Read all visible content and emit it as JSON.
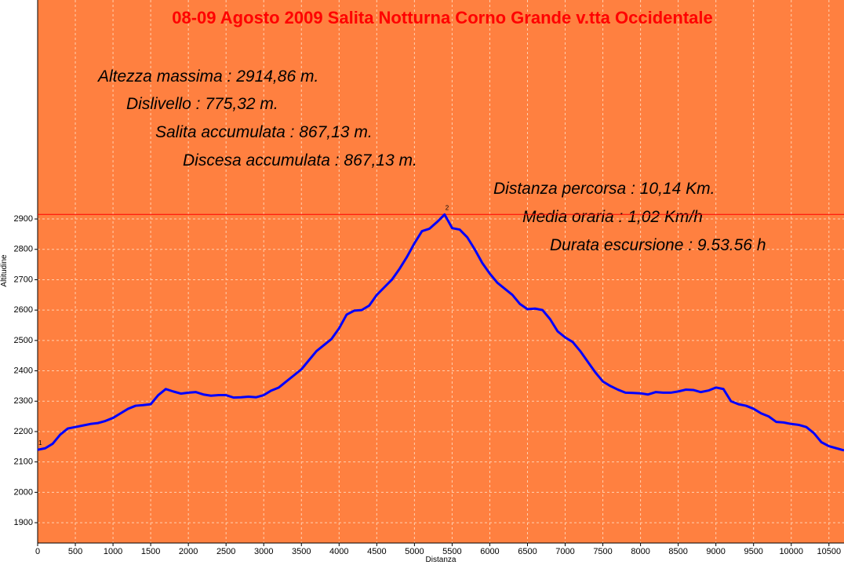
{
  "chart_data": {
    "type": "line",
    "title": "08-09 Agosto 2009 Salita Notturna Corno Grande v.tta Occidentale",
    "annotations": [
      "Altezza massima : 2914,86 m.",
      "Dislivello : 775,32 m.",
      "Salita accumulata : 867,13 m.",
      "Discesa accumulata : 867,13 m.",
      "Distanza percorsa : 10,14 Km.",
      "Media oraria : 1,02  Km/h",
      "Durata escursione : 9.53.56 h"
    ],
    "xlabel": "Distanza",
    "ylabel": "Altitudine",
    "x": [
      0,
      100,
      200,
      300,
      400,
      500,
      600,
      700,
      800,
      900,
      1000,
      1100,
      1200,
      1300,
      1400,
      1500,
      1600,
      1700,
      1800,
      1900,
      2000,
      2100,
      2200,
      2300,
      2400,
      2500,
      2600,
      2700,
      2800,
      2900,
      3000,
      3100,
      3200,
      3300,
      3400,
      3500,
      3600,
      3700,
      3800,
      3900,
      4000,
      4100,
      4200,
      4300,
      4400,
      4500,
      4600,
      4700,
      4800,
      4900,
      5000,
      5100,
      5200,
      5300,
      5400,
      5500,
      5600,
      5700,
      5800,
      5900,
      6000,
      6100,
      6200,
      6300,
      6400,
      6500,
      6600,
      6700,
      6800,
      6900,
      7000,
      7100,
      7200,
      7300,
      7400,
      7500,
      7600,
      7700,
      7800,
      7900,
      8000,
      8100,
      8200,
      8300,
      8400,
      8500,
      8600,
      8700,
      8800,
      8900,
      9000,
      9100,
      9200,
      9300,
      9400,
      9500,
      9600,
      9700,
      9800,
      9900,
      10000,
      10100,
      10200,
      10300,
      10400,
      10500,
      10600,
      10700
    ],
    "values": [
      2140,
      2145,
      2160,
      2190,
      2210,
      2215,
      2220,
      2225,
      2228,
      2235,
      2245,
      2260,
      2275,
      2285,
      2287,
      2290,
      2320,
      2340,
      2332,
      2325,
      2328,
      2330,
      2322,
      2318,
      2320,
      2320,
      2312,
      2313,
      2315,
      2313,
      2320,
      2335,
      2345,
      2365,
      2385,
      2405,
      2435,
      2465,
      2485,
      2505,
      2540,
      2585,
      2598,
      2600,
      2615,
      2650,
      2675,
      2700,
      2735,
      2775,
      2820,
      2860,
      2868,
      2890,
      2914.86,
      2870,
      2865,
      2840,
      2800,
      2755,
      2720,
      2690,
      2670,
      2650,
      2620,
      2603,
      2605,
      2600,
      2570,
      2530,
      2510,
      2495,
      2465,
      2430,
      2395,
      2365,
      2350,
      2338,
      2328,
      2327,
      2326,
      2322,
      2330,
      2328,
      2328,
      2332,
      2338,
      2337,
      2330,
      2335,
      2345,
      2340,
      2300,
      2290,
      2285,
      2275,
      2260,
      2250,
      2232,
      2230,
      2225,
      2222,
      2215,
      2195,
      2165,
      2152,
      2145,
      2138
    ],
    "color": "#0000ff",
    "reference_line": {
      "value": 2914.86,
      "color": "#ff0000"
    },
    "point_labels": [
      {
        "x": 0,
        "y": 2140,
        "label": "1"
      },
      {
        "x": 5400,
        "y": 2914.86,
        "label": "2"
      }
    ],
    "background": "#ff8040",
    "xlim": [
      0,
      10700
    ],
    "ylim": [
      1833,
      3621
    ],
    "xticks": [
      0,
      500,
      1000,
      1500,
      2000,
      2500,
      3000,
      3500,
      4000,
      4500,
      5000,
      5500,
      6000,
      6500,
      7000,
      7500,
      8000,
      8500,
      9000,
      9500,
      10000,
      10500
    ],
    "yticks": [
      1900,
      2000,
      2100,
      2200,
      2300,
      2400,
      2500,
      2600,
      2700,
      2800,
      2900
    ],
    "grid": true
  }
}
